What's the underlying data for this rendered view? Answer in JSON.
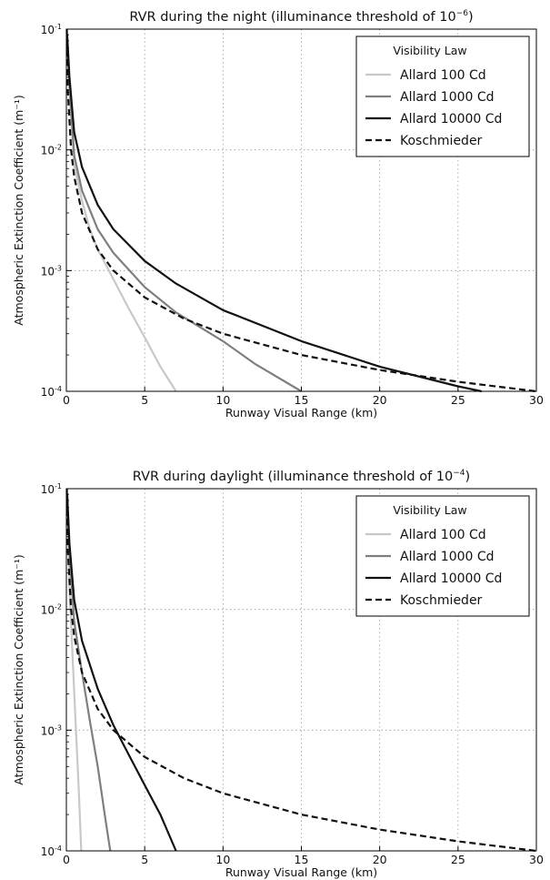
{
  "chart_data": [
    {
      "type": "line",
      "title": "RVR during the night (illuminance threshold of 10⁻⁶)",
      "title_main": "RVR during the night (illuminance threshold of 10",
      "title_exp": "−6",
      "xlabel": "Runway Visual Range (km)",
      "ylabel": "Atmospheric Extinction Coefficient (m⁻¹)",
      "xlim": [
        0,
        30
      ],
      "ylim": [
        0.0001,
        0.1
      ],
      "yscale": "log",
      "grid": true,
      "legend": {
        "title": "Visibility Law",
        "placement": "top-right"
      },
      "x_ticks": [
        "0",
        "5",
        "10",
        "15",
        "20",
        "25",
        "30"
      ],
      "y_ticks": [
        {
          "value": 0.1,
          "base": "10",
          "exp": "-1"
        },
        {
          "value": 0.01,
          "base": "10",
          "exp": "-2"
        },
        {
          "value": 0.001,
          "base": "10",
          "exp": "-3"
        },
        {
          "value": 0.0001,
          "base": "10",
          "exp": "-4"
        }
      ],
      "series": [
        {
          "name": "Allard 100 Cd",
          "color": "#c8c8c8",
          "dash": "solid",
          "x": [
            0.05,
            0.2,
            0.5,
            1.0,
            1.5,
            2.0,
            3.0,
            4.0,
            5.0,
            6.0,
            7.0
          ],
          "y": [
            0.08,
            0.03,
            0.0075,
            0.0038,
            0.0022,
            0.0015,
            0.00085,
            0.00048,
            0.00028,
            0.00016,
            0.0001
          ]
        },
        {
          "name": "Allard 1000 Cd",
          "color": "#7f7f7f",
          "dash": "solid",
          "x": [
            0.05,
            0.2,
            0.5,
            1.0,
            2.0,
            3.0,
            5.0,
            7.0,
            10.0,
            12.0,
            15.0
          ],
          "y": [
            0.08,
            0.035,
            0.009,
            0.0046,
            0.0022,
            0.0014,
            0.00073,
            0.00045,
            0.00026,
            0.00017,
            0.0001
          ]
        },
        {
          "name": "Allard 10000 Cd",
          "color": "#111111",
          "dash": "solid",
          "x": [
            0.05,
            0.2,
            0.5,
            1.0,
            2.0,
            3.0,
            5.0,
            7.0,
            10.0,
            15.0,
            20.0,
            25.0,
            26.5
          ],
          "y": [
            0.09,
            0.04,
            0.014,
            0.0072,
            0.0035,
            0.0022,
            0.0012,
            0.00078,
            0.00047,
            0.00026,
            0.00016,
            0.00011,
            0.0001
          ]
        },
        {
          "name": "Koschmieder",
          "color": "#111111",
          "dash": "dashed",
          "x": [
            0.03,
            0.1,
            0.3,
            0.5,
            1.0,
            2.0,
            3.0,
            5.0,
            7.5,
            10.0,
            15.0,
            20.0,
            25.0,
            30.0
          ],
          "y": [
            0.1,
            0.03,
            0.01,
            0.006,
            0.003,
            0.0015,
            0.001,
            0.0006,
            0.0004,
            0.0003,
            0.0002,
            0.00015,
            0.00012,
            0.0001
          ]
        }
      ]
    },
    {
      "type": "line",
      "title": "RVR during daylight (illuminance threshold of 10⁻⁴)",
      "title_main": "RVR during daylight (illuminance threshold of 10",
      "title_exp": "−4",
      "xlabel": "Runway Visual Range (km)",
      "ylabel": "Atmospheric Extinction Coefficient (m⁻¹)",
      "xlim": [
        0,
        30
      ],
      "ylim": [
        0.0001,
        0.1
      ],
      "yscale": "log",
      "grid": true,
      "legend": {
        "title": "Visibility Law",
        "placement": "top-right"
      },
      "x_ticks": [
        "0",
        "5",
        "10",
        "15",
        "20",
        "25",
        "30"
      ],
      "y_ticks": [
        {
          "value": 0.1,
          "base": "10",
          "exp": "-1"
        },
        {
          "value": 0.01,
          "base": "10",
          "exp": "-2"
        },
        {
          "value": 0.001,
          "base": "10",
          "exp": "-3"
        },
        {
          "value": 0.0001,
          "base": "10",
          "exp": "-4"
        }
      ],
      "series": [
        {
          "name": "Allard 100 Cd",
          "color": "#c8c8c8",
          "dash": "solid",
          "x": [
            0.05,
            0.2,
            0.4,
            0.6,
            0.8,
            0.95
          ],
          "y": [
            0.09,
            0.015,
            0.004,
            0.0011,
            0.0003,
            0.0001
          ]
        },
        {
          "name": "Allard 1000 Cd",
          "color": "#7f7f7f",
          "dash": "solid",
          "x": [
            0.05,
            0.2,
            0.5,
            1.0,
            1.5,
            2.0,
            2.5,
            2.8
          ],
          "y": [
            0.09,
            0.03,
            0.008,
            0.003,
            0.0012,
            0.0005,
            0.00018,
            0.0001
          ]
        },
        {
          "name": "Allard 10000 Cd",
          "color": "#111111",
          "dash": "solid",
          "x": [
            0.05,
            0.2,
            0.5,
            1.0,
            2.0,
            3.0,
            4.0,
            5.0,
            6.0,
            7.0
          ],
          "y": [
            0.09,
            0.035,
            0.012,
            0.0055,
            0.0022,
            0.0011,
            0.00062,
            0.00035,
            0.0002,
            0.0001
          ]
        },
        {
          "name": "Koschmieder",
          "color": "#111111",
          "dash": "dashed",
          "x": [
            0.03,
            0.1,
            0.3,
            0.5,
            1.0,
            2.0,
            3.0,
            5.0,
            7.5,
            10.0,
            15.0,
            20.0,
            25.0,
            30.0
          ],
          "y": [
            0.1,
            0.03,
            0.01,
            0.006,
            0.003,
            0.0015,
            0.001,
            0.0006,
            0.0004,
            0.0003,
            0.0002,
            0.00015,
            0.00012,
            0.0001
          ]
        }
      ]
    }
  ]
}
